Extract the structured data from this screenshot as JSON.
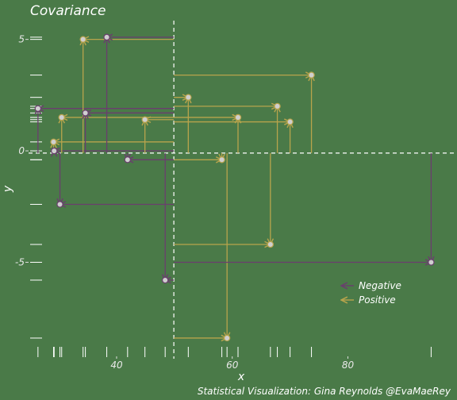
{
  "chart_data": {
    "type": "scatter",
    "title": "Covariance",
    "xlabel": "x",
    "ylabel": "y",
    "caption": "Statistical Visualization: Gina Reynolds @EvaMaeRey",
    "x_ticks": [
      40,
      60,
      80
    ],
    "y_ticks": [
      5,
      0,
      -5
    ],
    "xlim": [
      24.5,
      97.5
    ],
    "ylim": [
      -8.9,
      5.7
    ],
    "mean": {
      "x": 49.9,
      "y": -0.1
    },
    "grid": false,
    "legend_position": "bottom-right",
    "legend": [
      {
        "label": "Negative",
        "color": "#6a3e6e"
      },
      {
        "label": "Positive",
        "color": "#b8a44c"
      }
    ],
    "points": [
      {
        "x": 26.4,
        "y": 1.9,
        "sign": "Negative"
      },
      {
        "x": 29.1,
        "y": 0.4,
        "sign": "Positive"
      },
      {
        "x": 29.2,
        "y": 0.0,
        "sign": "Negative"
      },
      {
        "x": 30.2,
        "y": -2.4,
        "sign": "Negative"
      },
      {
        "x": 30.5,
        "y": 1.5,
        "sign": "Positive"
      },
      {
        "x": 34.2,
        "y": 5.0,
        "sign": "Positive"
      },
      {
        "x": 34.6,
        "y": 1.7,
        "sign": "Negative"
      },
      {
        "x": 38.3,
        "y": 5.1,
        "sign": "Negative"
      },
      {
        "x": 41.9,
        "y": -0.4,
        "sign": "Negative"
      },
      {
        "x": 44.9,
        "y": 1.4,
        "sign": "Positive"
      },
      {
        "x": 48.4,
        "y": -5.8,
        "sign": "Negative"
      },
      {
        "x": 52.4,
        "y": 2.4,
        "sign": "Positive"
      },
      {
        "x": 58.2,
        "y": -0.4,
        "sign": "Positive"
      },
      {
        "x": 59.1,
        "y": -8.4,
        "sign": "Positive"
      },
      {
        "x": 61.0,
        "y": 1.5,
        "sign": "Positive"
      },
      {
        "x": 66.6,
        "y": -4.2,
        "sign": "Positive"
      },
      {
        "x": 67.8,
        "y": 2.0,
        "sign": "Positive"
      },
      {
        "x": 70.0,
        "y": 1.3,
        "sign": "Positive"
      },
      {
        "x": 73.7,
        "y": 3.4,
        "sign": "Positive"
      },
      {
        "x": 94.4,
        "y": -5.0,
        "sign": "Negative"
      }
    ]
  }
}
